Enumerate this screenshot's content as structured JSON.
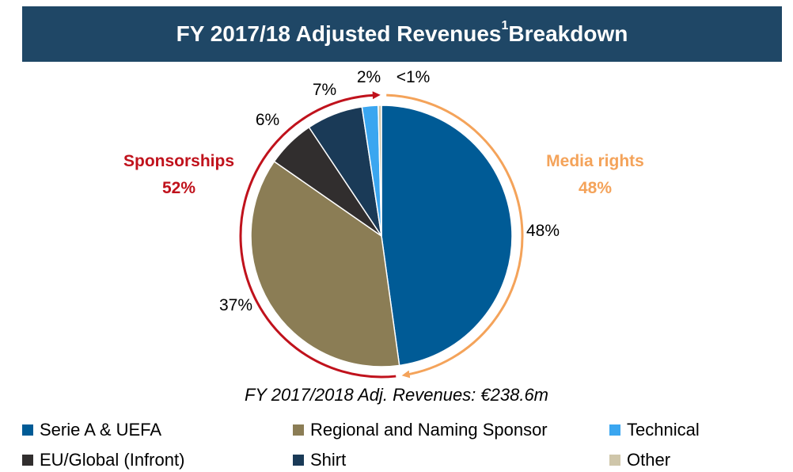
{
  "header": {
    "title": "FY 2017/18 Adjusted Revenues",
    "title_sup": "1",
    "title_suffix": " Breakdown"
  },
  "chart_data": {
    "type": "pie",
    "title": "FY 2017/18 Adjusted Revenues Breakdown",
    "subtitle": "FY 2017/2018 Adj. Revenues: €238.6m",
    "slices": [
      {
        "name": "Serie A & UEFA",
        "value": 48,
        "label": "48%",
        "color": "#005b96"
      },
      {
        "name": "Regional and Naming Sponsor",
        "value": 37,
        "label": "37%",
        "color": "#8b7d55"
      },
      {
        "name": "EU/Global (Infront)",
        "value": 6,
        "label": "6%",
        "color": "#312e2e"
      },
      {
        "name": "Shirt",
        "value": 7,
        "label": "7%",
        "color": "#1a3a57"
      },
      {
        "name": "Technical",
        "value": 2,
        "label": "2%",
        "color": "#3aa6f0"
      },
      {
        "name": "Other",
        "value": 0.4,
        "label": "<1%",
        "color": "#cfc6aa"
      }
    ],
    "groups": [
      {
        "name": "Media rights",
        "value_label": "48%",
        "color": "#f4a35a"
      },
      {
        "name": "Sponsorships",
        "value_label": "52%",
        "color": "#c0121c"
      }
    ],
    "legend_placement": "bottom"
  },
  "legend": [
    {
      "label": "Serie A & UEFA",
      "color": "#005b96"
    },
    {
      "label": "Regional and Naming Sponsor",
      "color": "#8b7d55"
    },
    {
      "label": "Technical",
      "color": "#3aa6f0"
    },
    {
      "label": "EU/Global (Infront)",
      "color": "#312e2e"
    },
    {
      "label": "Shirt",
      "color": "#1a3a57"
    },
    {
      "label": "Other",
      "color": "#cfc6aa"
    }
  ]
}
